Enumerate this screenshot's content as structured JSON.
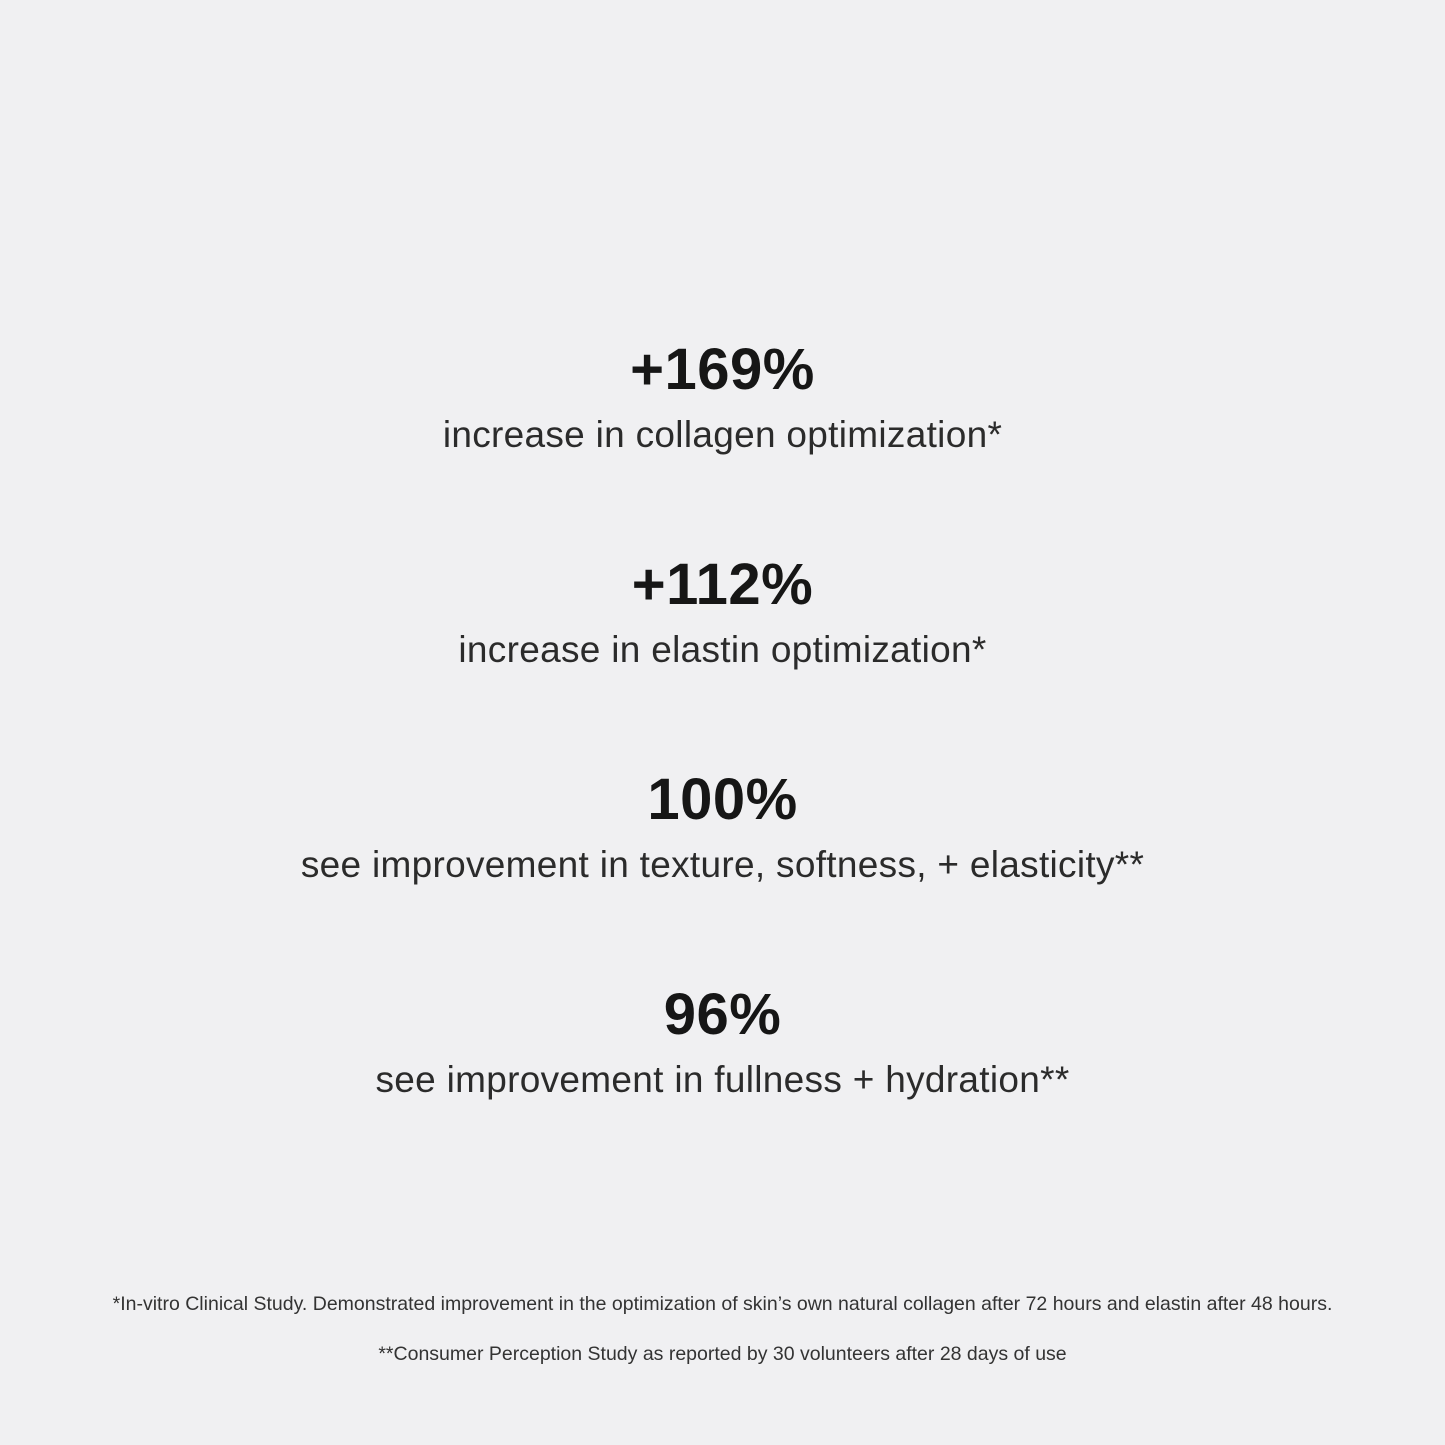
{
  "page": {
    "background_color": "#f0f0f2",
    "value_text_color": "#161616",
    "label_text_color": "#2b2b2b",
    "footnote_text_color": "#333333"
  },
  "stats": [
    {
      "value": "+169%",
      "label": "increase in collagen optimization*"
    },
    {
      "value": "+112%",
      "label": "increase in elastin optimization*"
    },
    {
      "value": "100%",
      "label": "see improvement in texture, softness, + elasticity**"
    },
    {
      "value": "96%",
      "label": "see improvement in fullness + hydration**"
    }
  ],
  "footnotes": [
    "*In-vitro Clinical Study. Demonstrated improvement in the optimization of skin’s own natural collagen after 72 hours and elastin after 48 hours.",
    "**Consumer Perception Study as reported by 30 volunteers after 28 days of use"
  ]
}
